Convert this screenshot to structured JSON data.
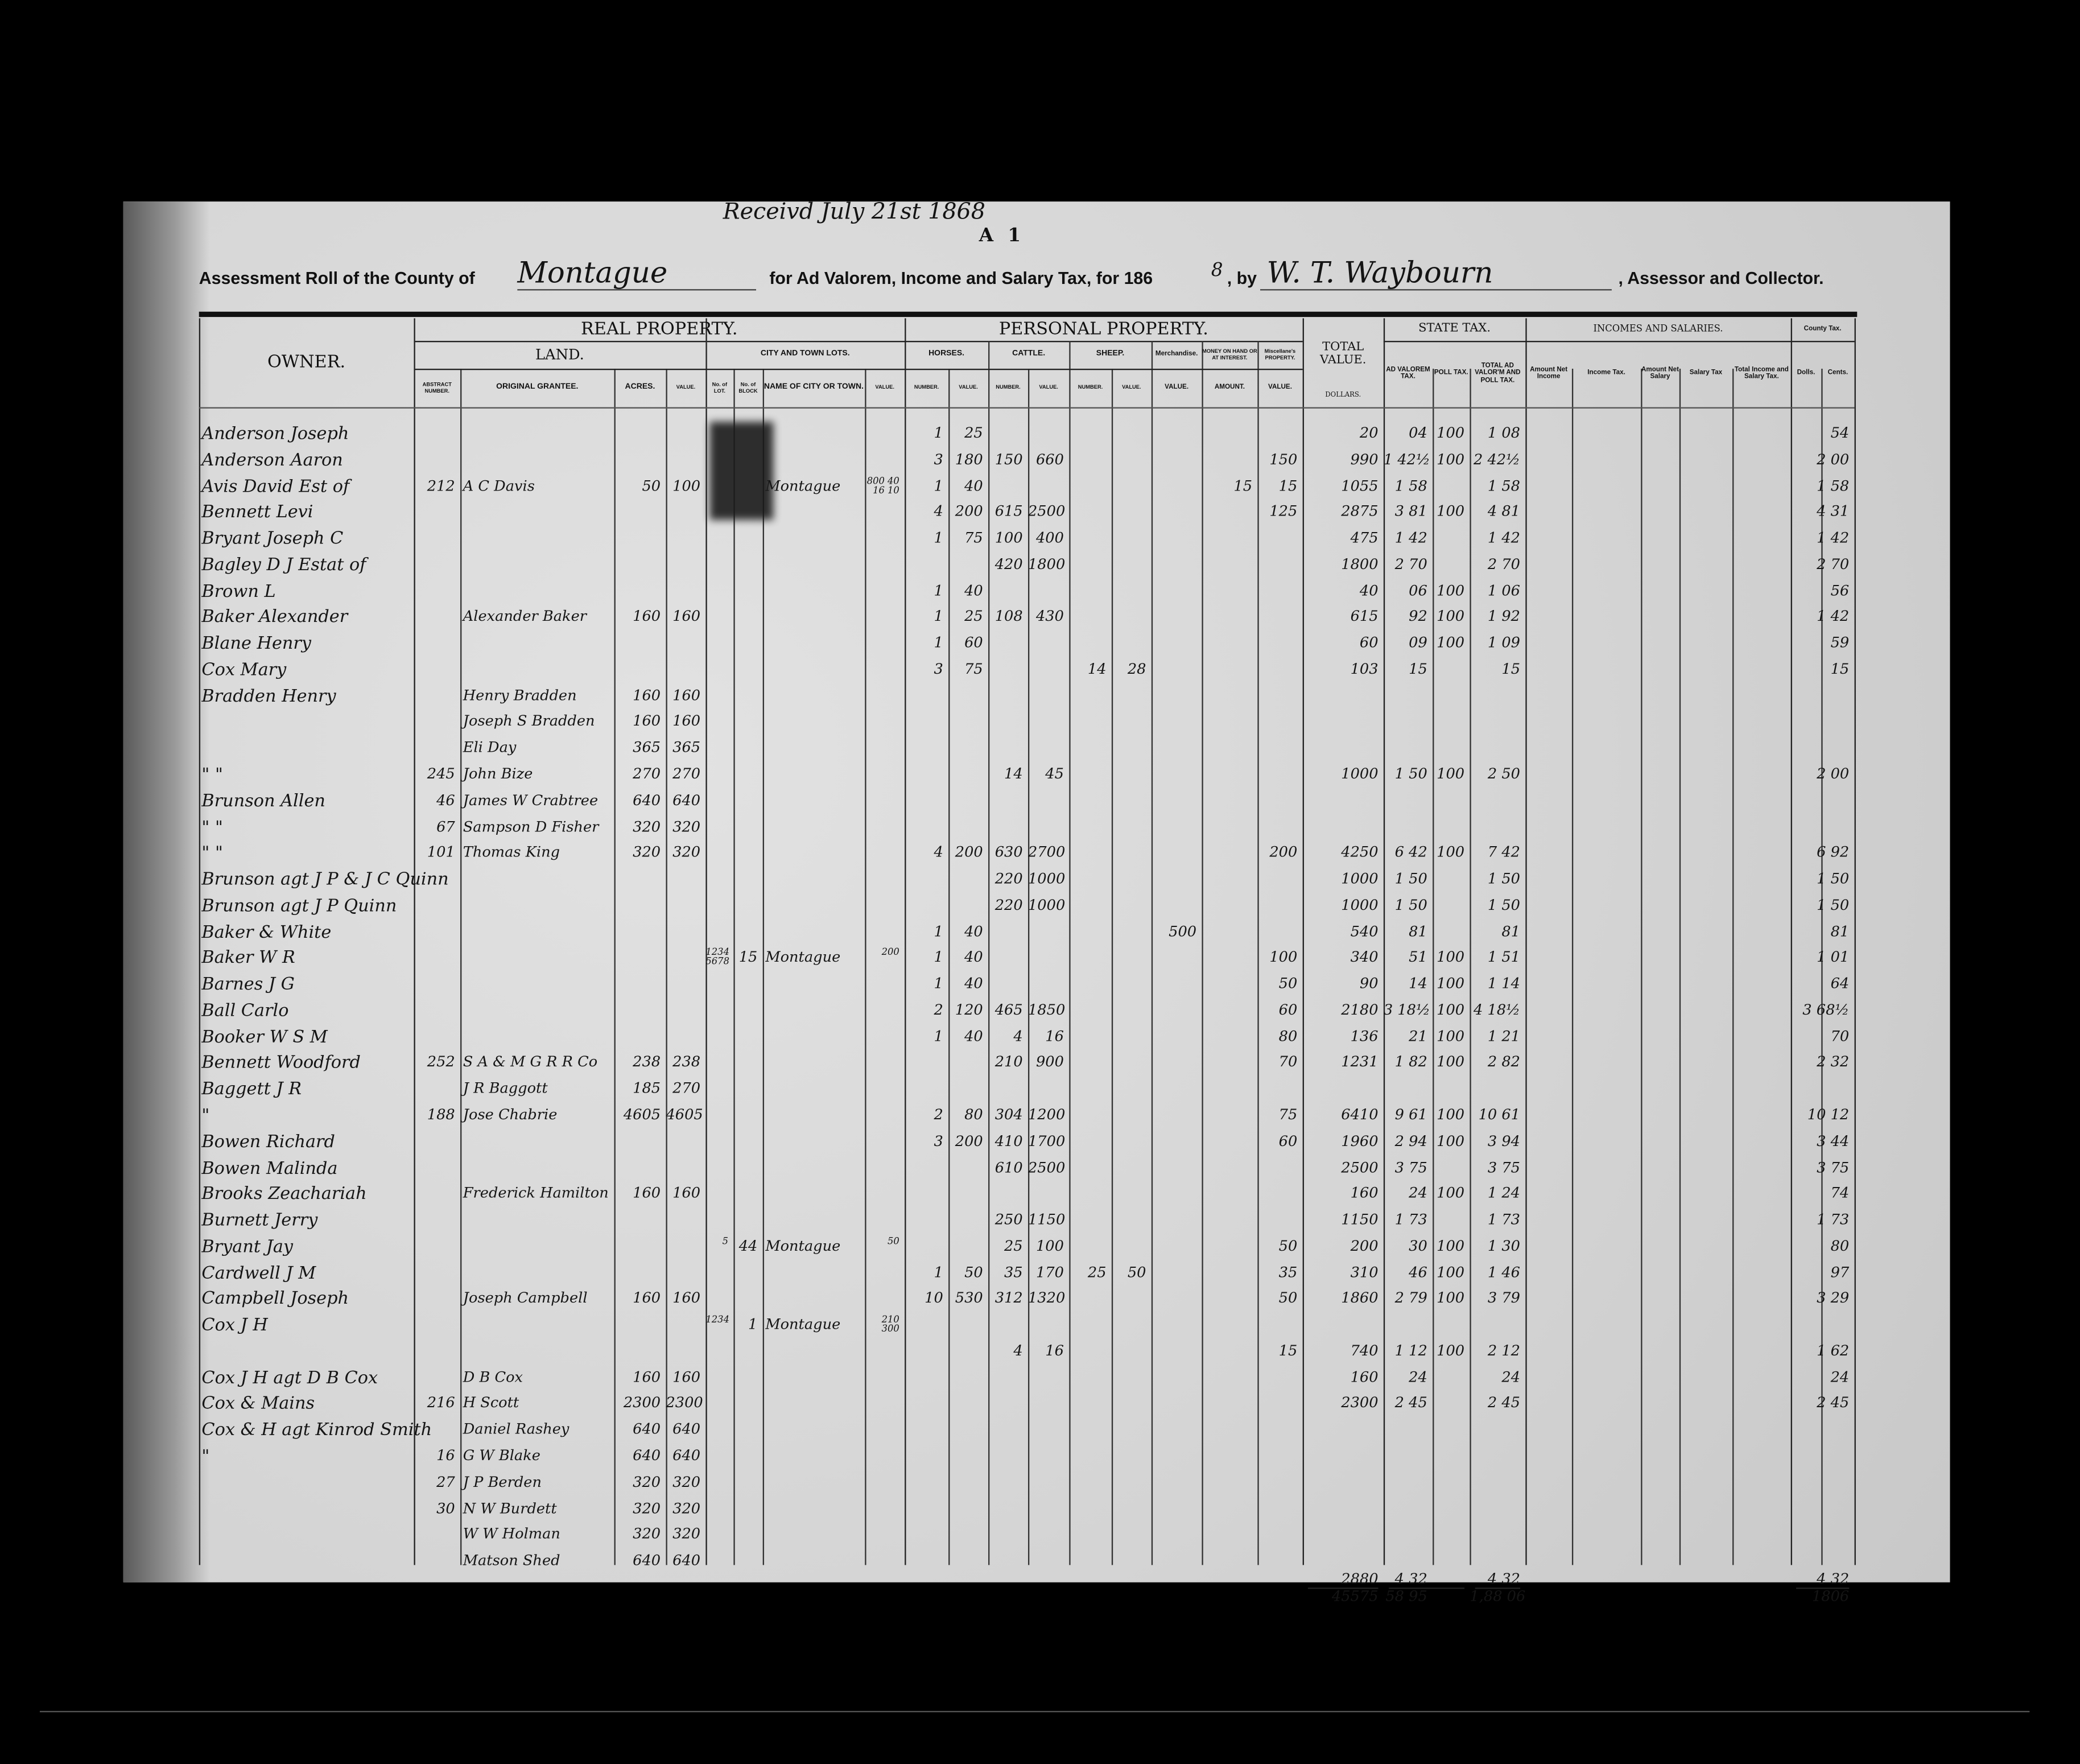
{
  "annotation": {
    "received": "Receivd July 21st 1868",
    "sheet": "A 1"
  },
  "title": {
    "prefix": "Assessment Roll of the County of",
    "county": "Montague",
    "middle": "for Ad Valorem, Income and Salary Tax, for 186",
    "year_digit": "8",
    "by": ", by",
    "assessor": "W. T. Waybourn",
    "suffix": ", Assessor and Collector."
  },
  "headers": {
    "owner": "OWNER.",
    "real_property": "REAL PROPERTY.",
    "land": "LAND.",
    "city_lots": "CITY AND TOWN LOTS.",
    "abstract": "ABSTRACT NUMBER.",
    "grantee": "ORIGINAL GRANTEE.",
    "acres": "ACRES.",
    "land_value": "VALUE.",
    "lot": "No. of LOT.",
    "block": "No. of BLOCK",
    "city": "NAME OF CITY OR TOWN.",
    "city_value": "VALUE.",
    "personal_property": "PERSONAL PROPERTY.",
    "horses": "HORSES.",
    "cattle": "CATTLE.",
    "sheep": "SHEEP.",
    "number": "NUMBER.",
    "value": "VALUE.",
    "merchandise": "Merchandise.",
    "money": "MONEY ON HAND OR AT INTEREST.",
    "amount": "AMOUNT.",
    "misc": "Miscellane's PROPERTY.",
    "total_value": "TOTAL VALUE.",
    "dollars": "DOLLARS.",
    "state_tax": "STATE TAX.",
    "ad_valorem": "AD VALOREM TAX.",
    "poll": "POLL TAX.",
    "total_tax": "TOTAL AD VALOR'M AND POLL TAX.",
    "incomes": "INCOMES AND SALARIES.",
    "net_income": "Amount Net Income",
    "income_tax": "Income Tax.",
    "net_salary": "Amount Net Salary",
    "salary_tax": "Salary Tax",
    "total_income": "Total Income and Salary Tax.",
    "county_tax": "County Tax.",
    "dolls": "Dolls.",
    "cents": "Cents."
  },
  "rows": [
    {
      "owner": "Anderson Joseph",
      "hn": "1",
      "hv": "25",
      "total": "20",
      "adv": "04",
      "poll": "100",
      "ttax": "1 08",
      "county": "54"
    },
    {
      "owner": "Anderson Aaron",
      "hn": "3",
      "hv": "180",
      "cn": "150",
      "cv": "660",
      "misc": "150",
      "total": "990",
      "adv": "1 42½",
      "poll": "100",
      "ttax": "2 42½",
      "county": "2 00"
    },
    {
      "owner": "Avis David Est of",
      "abs": "212",
      "grantee": "A C Davis",
      "acres": "50",
      "lval": "100",
      "city": "Montague",
      "cval": "800 40 16 10",
      "hn": "1",
      "hv": "40",
      "money": "15",
      "misc": "15",
      "total": "1055",
      "adv": "1 58",
      "ttax": "1 58",
      "county": "1 58"
    },
    {
      "owner": "Bennett Levi",
      "hn": "4",
      "hv": "200",
      "cn": "615",
      "cv": "2500",
      "misc": "125",
      "total": "2875",
      "adv": "3 81",
      "poll": "100",
      "ttax": "4 81",
      "county": "4 31"
    },
    {
      "owner": "Bryant Joseph C",
      "hn": "1",
      "hv": "75",
      "cn": "100",
      "cv": "400",
      "total": "475",
      "adv": "1 42",
      "ttax": "1 42",
      "county": "1 42"
    },
    {
      "owner": "Bagley D J Estat of",
      "cn": "420",
      "cv": "1800",
      "total": "1800",
      "adv": "2 70",
      "ttax": "2 70",
      "county": "2 70"
    },
    {
      "owner": "Brown L",
      "hn": "1",
      "hv": "40",
      "total": "40",
      "adv": "06",
      "poll": "100",
      "ttax": "1 06",
      "county": "56"
    },
    {
      "owner": "Baker Alexander",
      "grantee": "Alexander Baker",
      "acres": "160",
      "lval": "160",
      "hn": "1",
      "hv": "25",
      "cn": "108",
      "cv": "430",
      "total": "615",
      "adv": "92",
      "poll": "100",
      "ttax": "1 92",
      "county": "1 42"
    },
    {
      "owner": "Blane Henry",
      "hn": "1",
      "hv": "60",
      "total": "60",
      "adv": "09",
      "poll": "100",
      "ttax": "1 09",
      "county": "59"
    },
    {
      "owner": "Cox Mary",
      "hn": "3",
      "hv": "75",
      "sn": "14",
      "sv": "28",
      "total": "103",
      "adv": "15",
      "ttax": "15",
      "county": "15"
    },
    {
      "owner": "Bradden Henry",
      "grantee": "Henry Bradden",
      "acres": "160",
      "lval": "160"
    },
    {
      "grantee": "Joseph S Bradden",
      "acres": "160",
      "lval": "160"
    },
    {
      "grantee": "Eli Day",
      "acres": "365",
      "lval": "365"
    },
    {
      "owner": "\"      \"",
      "abs": "245",
      "grantee": "John Bize",
      "acres": "270",
      "lval": "270",
      "cn": "14",
      "cv": "45",
      "total": "1000",
      "adv": "1 50",
      "poll": "100",
      "ttax": "2 50",
      "county": "2 00"
    },
    {
      "owner": "Brunson Allen",
      "abs": "46",
      "grantee": "James W Crabtree",
      "acres": "640",
      "lval": "640"
    },
    {
      "owner": "\"      \"",
      "abs": "67",
      "grantee": "Sampson D Fisher",
      "acres": "320",
      "lval": "320"
    },
    {
      "owner": "\"      \"",
      "abs": "101",
      "grantee": "Thomas King",
      "acres": "320",
      "lval": "320",
      "hn": "4",
      "hv": "200",
      "cn": "630",
      "cv": "2700",
      "misc": "200",
      "total": "4250",
      "adv": "6 42",
      "poll": "100",
      "ttax": "7 42",
      "county": "6 92"
    },
    {
      "owner": "Brunson agt J P & J C Quinn",
      "cn": "220",
      "cv": "1000",
      "total": "1000",
      "adv": "1 50",
      "ttax": "1 50",
      "county": "1 50"
    },
    {
      "owner": "Brunson agt J P Quinn",
      "cn": "220",
      "cv": "1000",
      "total": "1000",
      "adv": "1 50",
      "ttax": "1 50",
      "county": "1 50"
    },
    {
      "owner": "Baker & White",
      "hn": "1",
      "hv": "40",
      "merch": "500",
      "total": "540",
      "adv": "81",
      "ttax": "81",
      "county": "81"
    },
    {
      "owner": "Baker W R",
      "lot": "1234 5678",
      "block": "15",
      "city": "Montague",
      "cval": "200",
      "hn": "1",
      "hv": "40",
      "misc": "100",
      "total": "340",
      "adv": "51",
      "poll": "100",
      "ttax": "1 51",
      "county": "1 01"
    },
    {
      "owner": "Barnes J G",
      "hn": "1",
      "hv": "40",
      "misc": "50",
      "total": "90",
      "adv": "14",
      "poll": "100",
      "ttax": "1 14",
      "county": "64"
    },
    {
      "owner": "Ball Carlo",
      "hn": "2",
      "hv": "120",
      "cn": "465",
      "cv": "1850",
      "misc": "60",
      "total": "2180",
      "adv": "3 18½",
      "poll": "100",
      "ttax": "4 18½",
      "county": "3 68½"
    },
    {
      "owner": "Booker W S M",
      "hn": "1",
      "hv": "40",
      "cn": "4",
      "cv": "16",
      "misc": "80",
      "total": "136",
      "adv": "21",
      "poll": "100",
      "ttax": "1 21",
      "county": "70"
    },
    {
      "owner": "Bennett Woodford",
      "abs": "252",
      "grantee": "S A & M G R R Co",
      "acres": "238",
      "lval": "238",
      "cn": "210",
      "cv": "900",
      "misc": "70",
      "total": "1231",
      "adv": "1 82",
      "poll": "100",
      "ttax": "2 82",
      "county": "2 32"
    },
    {
      "owner": "Baggett J R",
      "grantee": "J R Baggott",
      "acres": "185",
      "lval": "270"
    },
    {
      "owner": "\"",
      "abs": "188",
      "grantee": "Jose Chabrie",
      "acres": "4605",
      "lval": "4605",
      "hn": "2",
      "hv": "80",
      "cn": "304",
      "cv": "1200",
      "misc": "75",
      "total": "6410",
      "adv": "9 61",
      "poll": "100",
      "ttax": "10 61",
      "county": "10 12"
    },
    {
      "owner": "Bowen Richard",
      "hn": "3",
      "hv": "200",
      "cn": "410",
      "cv": "1700",
      "misc": "60",
      "total": "1960",
      "adv": "2 94",
      "poll": "100",
      "ttax": "3 94",
      "county": "3 44"
    },
    {
      "owner": "Bowen Malinda",
      "cn": "610",
      "cv": "2500",
      "total": "2500",
      "adv": "3 75",
      "ttax": "3 75",
      "county": "3 75"
    },
    {
      "owner": "Brooks Zeachariah",
      "grantee": "Frederick Hamilton",
      "acres": "160",
      "lval": "160",
      "total": "160",
      "adv": "24",
      "poll": "100",
      "ttax": "1 24",
      "county": "74"
    },
    {
      "owner": "Burnett Jerry",
      "cn": "250",
      "cv": "1150",
      "total": "1150",
      "adv": "1 73",
      "ttax": "1 73",
      "county": "1 73"
    },
    {
      "owner": "Bryant Jay",
      "lot": "5",
      "block": "44",
      "city": "Montague",
      "cval": "50",
      "cn": "25",
      "cv": "100",
      "misc": "50",
      "total": "200",
      "adv": "30",
      "poll": "100",
      "ttax": "1 30",
      "county": "80"
    },
    {
      "owner": "Cardwell J M",
      "hn": "1",
      "hv": "50",
      "cn": "35",
      "cv": "170",
      "sn": "25",
      "sv": "50",
      "misc": "35",
      "total": "310",
      "adv": "46",
      "poll": "100",
      "ttax": "1 46",
      "county": "97"
    },
    {
      "owner": "Campbell Joseph",
      "grantee": "Joseph Campbell",
      "acres": "160",
      "lval": "160",
      "hn": "10",
      "hv": "530",
      "cn": "312",
      "cv": "1320",
      "misc": "50",
      "total": "1860",
      "adv": "2 79",
      "poll": "100",
      "ttax": "3 79",
      "county": "3 29"
    },
    {
      "owner": "Cox J H",
      "lot": "1234",
      "block": "1",
      "city": "Montague",
      "cval": "210 300"
    },
    {
      "cn": "4",
      "cv": "16",
      "misc": "15",
      "total": "740",
      "adv": "1 12",
      "poll": "100",
      "ttax": "2 12",
      "county": "1 62"
    },
    {
      "owner": "Cox J H agt D B Cox",
      "grantee": "D B Cox",
      "acres": "160",
      "lval": "160",
      "total": "160",
      "adv": "24",
      "ttax": "24",
      "county": "24"
    },
    {
      "owner": "Cox & Mains",
      "abs": "216",
      "grantee": "H Scott",
      "acres": "2300",
      "lval": "2300",
      "total": "2300",
      "adv": "2 45",
      "ttax": "2 45",
      "county": "2 45"
    },
    {
      "owner": "Cox & H agt Kinrod Smith",
      "grantee": "Daniel Rashey",
      "acres": "640",
      "lval": "640"
    },
    {
      "owner": "\"",
      "abs": "16",
      "grantee": "G W Blake",
      "acres": "640",
      "lval": "640"
    },
    {
      "abs": "27",
      "grantee": "J P Berden",
      "acres": "320",
      "lval": "320"
    },
    {
      "abs": "30",
      "grantee": "N W Burdett",
      "acres": "320",
      "lval": "320"
    },
    {
      "grantee": "W W Holman",
      "acres": "320",
      "lval": "320"
    },
    {
      "grantee": "Matson Shed",
      "acres": "640",
      "lval": "640"
    }
  ],
  "totals": {
    "total_carried": "2880",
    "total_sum": "45575",
    "adv_carried": "4 32",
    "adv_sum": "58 95",
    "poll_sum": "1,88 06",
    "ttax_carried": "4 32",
    "county_carried": "4 32",
    "county_sum": "1806"
  }
}
